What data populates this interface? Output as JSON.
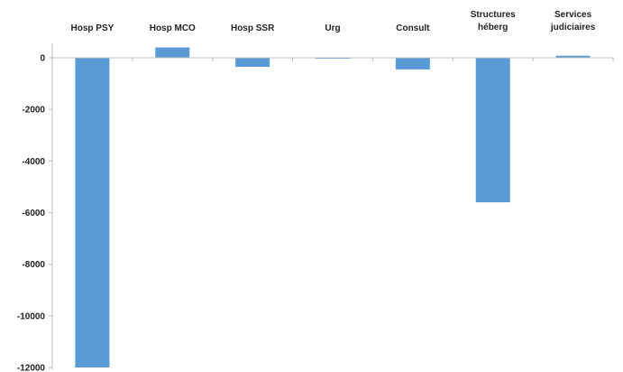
{
  "chart_data": {
    "type": "bar",
    "title": "",
    "xlabel": "",
    "ylabel": "",
    "categories": [
      [
        "Hosp PSY"
      ],
      [
        "Hosp MCO"
      ],
      [
        "Hosp SSR"
      ],
      [
        "Urg"
      ],
      [
        "Consult"
      ],
      [
        "Structures",
        "héberg"
      ],
      [
        "Services",
        "judiciaires"
      ]
    ],
    "values": [
      -12000,
      400,
      -350,
      -30,
      -450,
      -5600,
      80
    ],
    "ylim": [
      -12000,
      0
    ],
    "yticks": [
      0,
      -2000,
      -4000,
      -6000,
      -8000,
      -10000,
      -12000
    ],
    "ytick_labels": [
      "0",
      "-2000",
      "-4000",
      "-6000",
      "-8000",
      "-10000",
      "-12000"
    ],
    "category_axis_position": "top",
    "grid": false,
    "legend": "none",
    "colors": {
      "bar": "#5b9bd5",
      "axis": "#bfbfbf",
      "text": "#222222"
    }
  }
}
